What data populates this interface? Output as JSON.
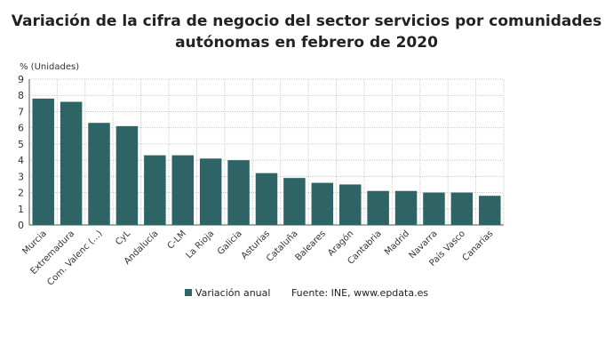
{
  "chart_data": {
    "type": "bar",
    "title": "Variación de la cifra de negocio del sector servicios por comunidades autónomas en febrero de 2020",
    "ylabel": "% (Unidades)",
    "ylim": [
      0,
      9
    ],
    "yticks": [
      0,
      1,
      2,
      3,
      4,
      5,
      6,
      7,
      8,
      9
    ],
    "grid": true,
    "legend_position": "bottom",
    "categories": [
      "Murcia",
      "Extremadura",
      "Com. Valenc (...)",
      "CyL",
      "Andalucía",
      "C-LM",
      "La Rioja",
      "Galicia",
      "Asturias",
      "Cataluña",
      "Baleares",
      "Aragón",
      "Cantabria",
      "Madrid",
      "Navarra",
      "País Vasco",
      "Canarias"
    ],
    "series": [
      {
        "name": "Variación anual",
        "values": [
          7.8,
          7.6,
          6.3,
          6.1,
          4.3,
          4.3,
          4.1,
          4.0,
          3.2,
          2.9,
          2.6,
          2.5,
          2.1,
          2.1,
          2.0,
          2.0,
          1.8
        ],
        "color": "#2f6466"
      }
    ],
    "source": "Fuente: INE, www.epdata.es"
  }
}
